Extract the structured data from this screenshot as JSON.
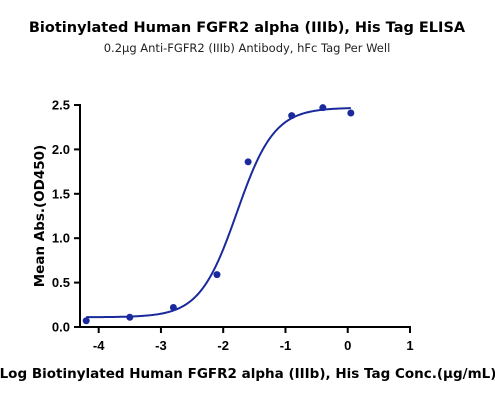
{
  "chart_data": {
    "type": "scatter",
    "title": "Biotinylated Human FGFR2 alpha (IIIb), His Tag ELISA",
    "subtitle": "0.2μg Anti-FGFR2 (IIIb) Antibody, hFc Tag Per Well",
    "xlabel": "Log Biotinylated Human FGFR2 alpha (IIIb), His Tag Conc.(μg/mL)",
    "ylabel": "Mean Abs.(OD450)",
    "xlim": [
      -4.3,
      1
    ],
    "ylim": [
      0,
      2.5
    ],
    "x_ticks": [
      "-4",
      "-3",
      "-2",
      "-1",
      "0",
      "1"
    ],
    "y_ticks": [
      "0.0",
      "0.5",
      "1.0",
      "1.5",
      "2.0",
      "2.5"
    ],
    "series": [
      {
        "points": [
          {
            "x": -4.2,
            "y": 0.07
          },
          {
            "x": -3.5,
            "y": 0.11
          },
          {
            "x": -2.8,
            "y": 0.22
          },
          {
            "x": -2.1,
            "y": 0.59
          },
          {
            "x": -1.6,
            "y": 1.86
          },
          {
            "x": -0.9,
            "y": 2.38
          },
          {
            "x": -0.4,
            "y": 2.47
          },
          {
            "x": 0.05,
            "y": 2.41
          }
        ],
        "fit": {
          "bottom": 0.11,
          "top": 2.47,
          "log_ec50": -1.78,
          "hill": 1.45
        },
        "color": "#1a2a9c"
      }
    ],
    "grid": false,
    "legend": "none"
  }
}
